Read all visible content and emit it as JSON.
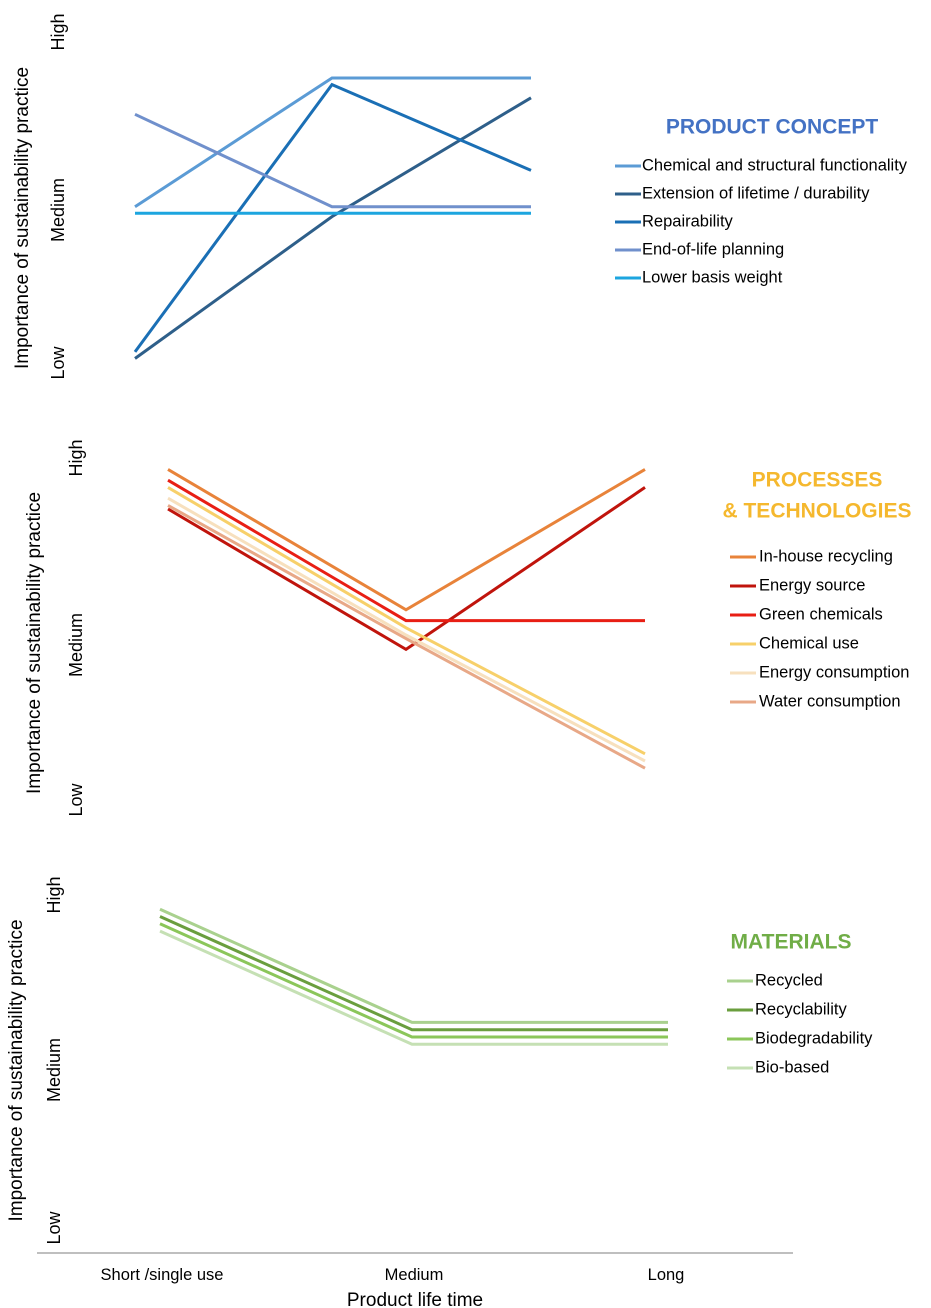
{
  "x_axis": {
    "title": "Product life time",
    "categories": [
      "Short /single use",
      "Medium",
      "Long"
    ]
  },
  "chart_data": [
    {
      "type": "line",
      "title": "PRODUCT CONCEPT",
      "title_color": "#4472C4",
      "ylabel": "Importance of sustainability practice",
      "y_tick_labels": [
        "Low",
        "Medium",
        "High"
      ],
      "ylim": [
        0,
        100
      ],
      "legend_position": "right",
      "categories": [
        "Short /single use",
        "Medium",
        "Long"
      ],
      "series": [
        {
          "name": "Chemical and  structural functionality",
          "color": "#5B9BD5",
          "values": [
            51,
            90,
            90
          ]
        },
        {
          "name": "Extension of lifetime / durability",
          "color": "#2E5F8A",
          "values": [
            5,
            48,
            84
          ]
        },
        {
          "name": "Repairability",
          "color": "#1A6FB5",
          "values": [
            7,
            88,
            62
          ]
        },
        {
          "name": "End-of-life planning",
          "color": "#7090CC",
          "values": [
            79,
            51,
            51
          ]
        },
        {
          "name": "Lower basis weight",
          "color": "#1CA5DF",
          "values": [
            49,
            49,
            49
          ]
        }
      ]
    },
    {
      "type": "line",
      "title": "PROCESSES\n& TECHNOLOGIES",
      "title_color": "#F5B82E",
      "ylabel": "Importance of sustainability practice",
      "y_tick_labels": [
        "Low",
        "Medium",
        "High"
      ],
      "ylim": [
        0,
        100
      ],
      "legend_position": "right",
      "categories": [
        "Short /single use",
        "Medium",
        "Long"
      ],
      "series": [
        {
          "name": "In-house recycling",
          "color": "#E8833A",
          "values": [
            96,
            57,
            96
          ]
        },
        {
          "name": "Energy source",
          "color": "#C0140C",
          "values": [
            85,
            46,
            91
          ]
        },
        {
          "name": "Green chemicals",
          "color": "#E81E14",
          "values": [
            93,
            54,
            54
          ]
        },
        {
          "name": "Chemical use",
          "color": "#F7D06A",
          "values": [
            91,
            52,
            17
          ]
        },
        {
          "name": "Energy consumption",
          "color": "#F7E0BE",
          "values": [
            88,
            50,
            15
          ]
        },
        {
          "name": "Water consumption",
          "color": "#E8A887",
          "values": [
            86,
            49,
            13
          ]
        }
      ]
    },
    {
      "type": "line",
      "title": "MATERIALS",
      "title_color": "#70AD47",
      "ylabel": "Importance of sustainability practice",
      "y_tick_labels": [
        "Low",
        "Medium",
        "High"
      ],
      "ylim": [
        0,
        100
      ],
      "legend_position": "right",
      "categories": [
        "Short /single use",
        "Medium",
        "Long"
      ],
      "series": [
        {
          "name": "Recycled",
          "color": "#A9D18E",
          "values": [
            92,
            61,
            61
          ]
        },
        {
          "name": "Recyclability",
          "color": "#6A9E3E",
          "values": [
            90,
            59,
            59
          ]
        },
        {
          "name": "Biodegradability",
          "color": "#8BC65A",
          "values": [
            88,
            57,
            57
          ]
        },
        {
          "name": "Bio-based",
          "color": "#C5E0B4",
          "values": [
            86,
            55,
            55
          ]
        }
      ]
    }
  ]
}
